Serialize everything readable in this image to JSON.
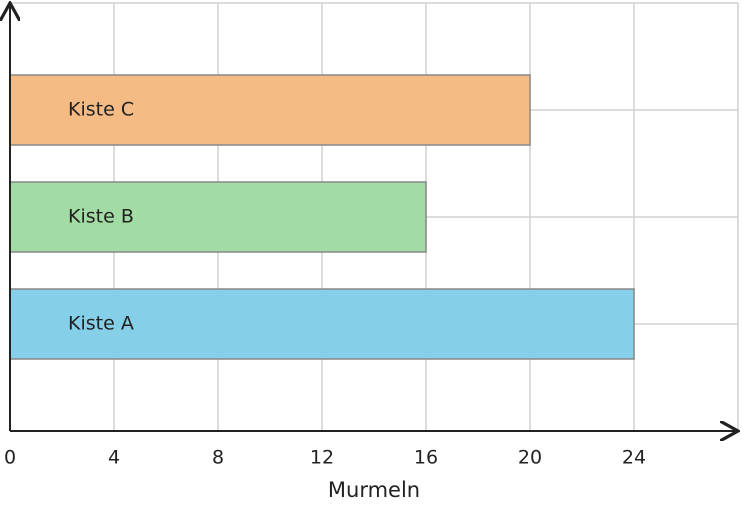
{
  "chart_data": {
    "type": "hbar",
    "x_label": "Murmeln",
    "categories": [
      "Kiste A",
      "Kiste B",
      "Kiste C"
    ],
    "values": [
      24,
      16,
      20
    ],
    "colors": [
      "#86cfe8",
      "#a3dba4",
      "#f4bc84"
    ],
    "xlim": [
      0,
      28
    ],
    "xticks": [
      0,
      4,
      8,
      12,
      16,
      20,
      24
    ],
    "grid": true
  }
}
